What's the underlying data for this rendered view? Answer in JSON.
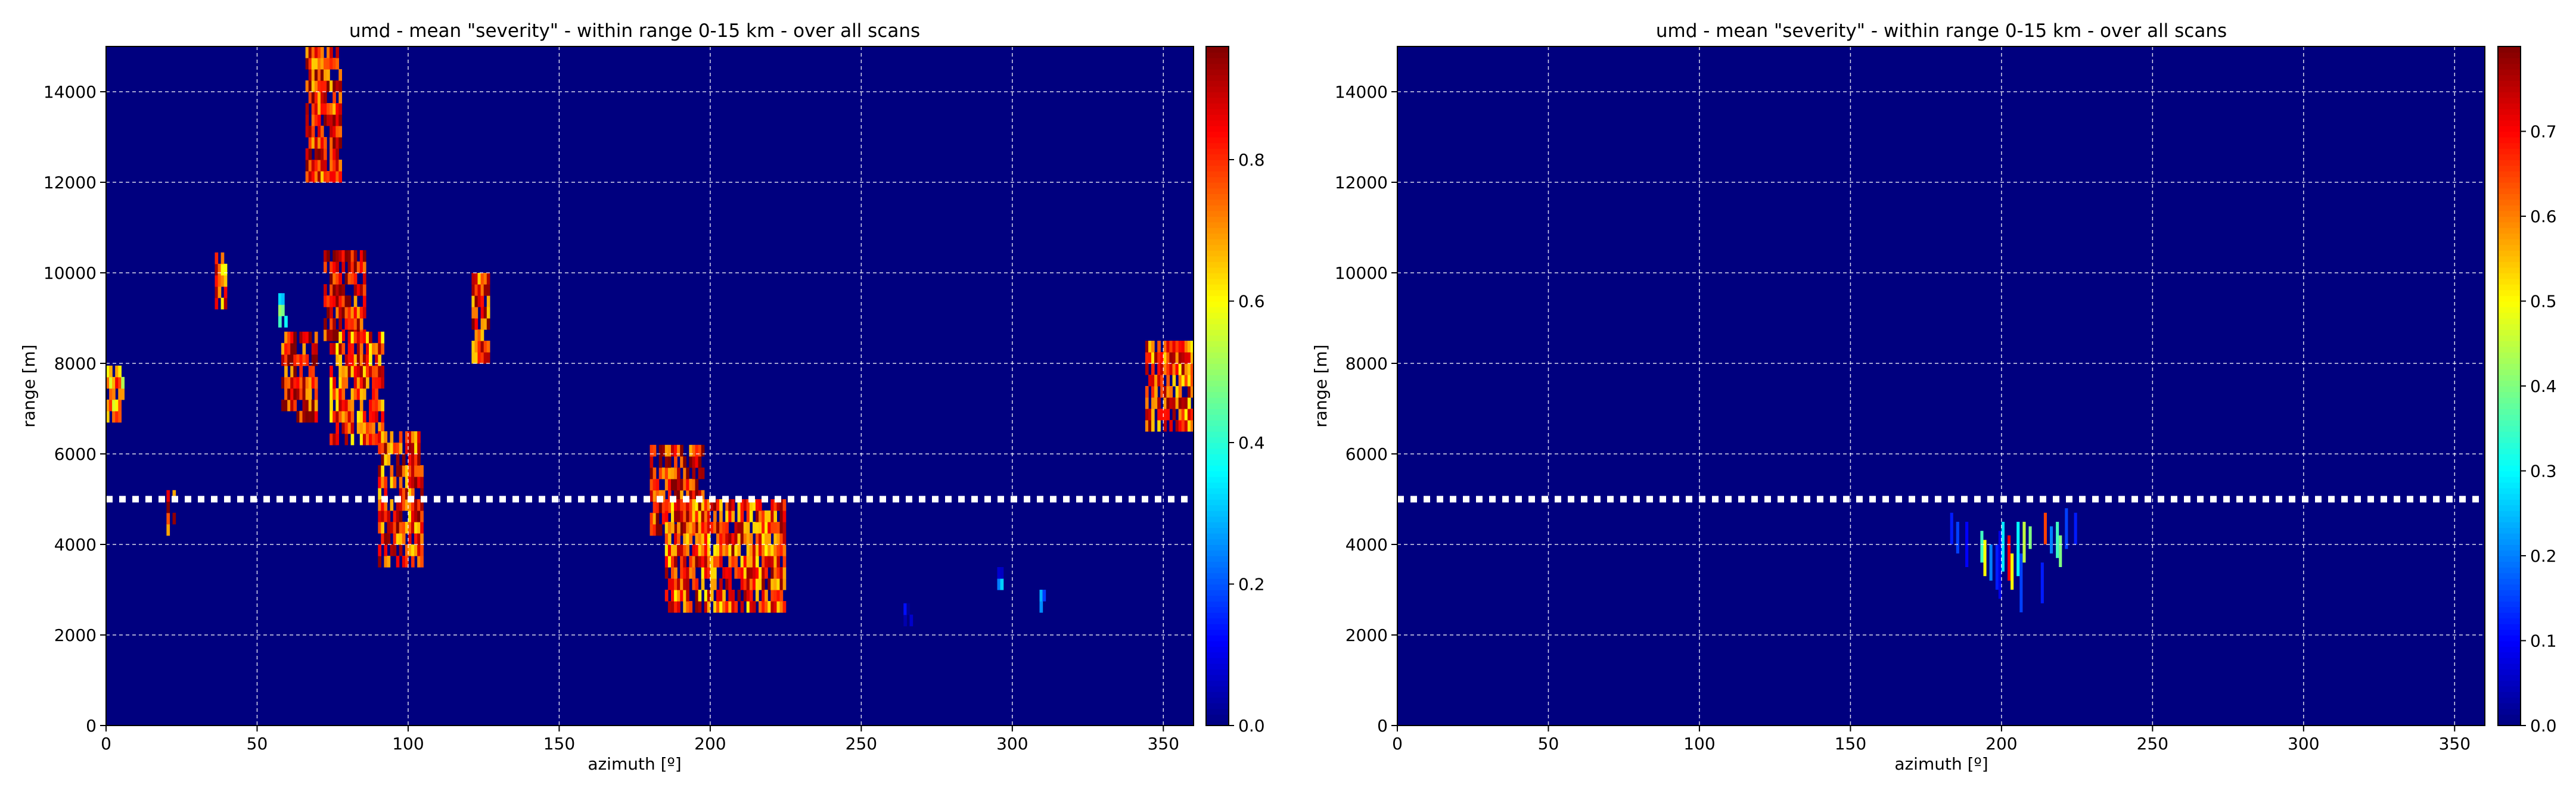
{
  "chart_data": [
    {
      "type": "heatmap",
      "title": "umd - mean \"severity\" - within range 0-15 km - over all scans",
      "xlabel": "azimuth [º]",
      "ylabel": "range [m]",
      "xlim": [
        0,
        360
      ],
      "ylim": [
        0,
        15000
      ],
      "x_ticks": [
        "0",
        "50",
        "100",
        "150",
        "200",
        "250",
        "300",
        "350"
      ],
      "y_ticks": [
        "0",
        "2000",
        "4000",
        "6000",
        "8000",
        "10000",
        "12000",
        "14000"
      ],
      "grid": true,
      "background_value": 0.0,
      "reference_line_range": 5000,
      "colorbar": {
        "min": 0.0,
        "max": 0.96,
        "ticks": [
          "0.0",
          "0.2",
          "0.4",
          "0.6",
          "0.8"
        ],
        "colormap": "jet-like"
      },
      "clusters": [
        {
          "az": [
            66,
            78
          ],
          "range": [
            12000,
            15000
          ],
          "mean": 0.82
        },
        {
          "az": [
            0,
            6
          ],
          "range": [
            6700,
            7800
          ],
          "mean": 0.7
        },
        {
          "az": [
            36,
            40
          ],
          "range": [
            9200,
            10300
          ],
          "mean": 0.75
        },
        {
          "az": [
            57,
            60
          ],
          "range": [
            8800,
            9500
          ],
          "mean": 0.45
        },
        {
          "az": [
            58,
            70
          ],
          "range": [
            6700,
            8500
          ],
          "mean": 0.85
        },
        {
          "az": [
            72,
            86
          ],
          "range": [
            8500,
            10300
          ],
          "mean": 0.85
        },
        {
          "az": [
            74,
            92
          ],
          "range": [
            6200,
            8700
          ],
          "mean": 0.78
        },
        {
          "az": [
            121,
            127
          ],
          "range": [
            8000,
            9800
          ],
          "mean": 0.8
        },
        {
          "az": [
            20,
            23
          ],
          "range": [
            4200,
            5000
          ],
          "mean": 0.85
        },
        {
          "az": [
            90,
            105
          ],
          "range": [
            3500,
            6500
          ],
          "mean": 0.8
        },
        {
          "az": [
            180,
            198
          ],
          "range": [
            4200,
            6000
          ],
          "mean": 0.85
        },
        {
          "az": [
            185,
            225
          ],
          "range": [
            2500,
            5000
          ],
          "mean": 0.78
        },
        {
          "az": [
            344,
            360
          ],
          "range": [
            6500,
            8500
          ],
          "mean": 0.78
        },
        {
          "az": [
            264,
            267
          ],
          "range": [
            2200,
            2700
          ],
          "mean": 0.12
        },
        {
          "az": [
            295,
            297
          ],
          "range": [
            3000,
            3500
          ],
          "mean": 0.2
        },
        {
          "az": [
            309,
            311
          ],
          "range": [
            2500,
            2900
          ],
          "mean": 0.12
        }
      ]
    },
    {
      "type": "heatmap",
      "title": "umd - mean \"severity\" - within range 0-15 km - over all scans",
      "xlabel": "azimuth [º]",
      "ylabel": "range [m]",
      "xlim": [
        0,
        360
      ],
      "ylim": [
        0,
        15000
      ],
      "x_ticks": [
        "0",
        "50",
        "100",
        "150",
        "200",
        "250",
        "300",
        "350"
      ],
      "y_ticks": [
        "0",
        "2000",
        "4000",
        "6000",
        "8000",
        "10000",
        "12000",
        "14000"
      ],
      "grid": true,
      "background_value": 0.0,
      "reference_line_range": 5000,
      "colorbar": {
        "min": 0.0,
        "max": 0.8,
        "ticks": [
          "0.0",
          "0.1",
          "0.2",
          "0.3",
          "0.4",
          "0.5",
          "0.6",
          "0.7"
        ],
        "colormap": "jet-like"
      },
      "bars": [
        {
          "az": 183,
          "range": [
            4000,
            4700
          ],
          "value": 0.12
        },
        {
          "az": 185,
          "range": [
            3800,
            4500
          ],
          "value": 0.15
        },
        {
          "az": 188,
          "range": [
            3500,
            4500
          ],
          "value": 0.1
        },
        {
          "az": 193,
          "range": [
            3600,
            4300
          ],
          "value": 0.35
        },
        {
          "az": 194,
          "range": [
            3300,
            4100
          ],
          "value": 0.5
        },
        {
          "az": 196,
          "range": [
            3200,
            4000
          ],
          "value": 0.2
        },
        {
          "az": 198,
          "range": [
            3000,
            4000
          ],
          "value": 0.12
        },
        {
          "az": 199,
          "range": [
            2800,
            4300
          ],
          "value": 0.08
        },
        {
          "az": 200,
          "range": [
            3400,
            4500
          ],
          "value": 0.28
        },
        {
          "az": 202,
          "range": [
            3200,
            4200
          ],
          "value": 0.7
        },
        {
          "az": 203,
          "range": [
            3000,
            3800
          ],
          "value": 0.5
        },
        {
          "az": 205,
          "range": [
            3300,
            4500
          ],
          "value": 0.3
        },
        {
          "az": 206,
          "range": [
            2500,
            3800
          ],
          "value": 0.15
        },
        {
          "az": 207,
          "range": [
            3600,
            4500
          ],
          "value": 0.45
        },
        {
          "az": 209,
          "range": [
            3900,
            4400
          ],
          "value": 0.4
        },
        {
          "az": 213,
          "range": [
            2700,
            3600
          ],
          "value": 0.12
        },
        {
          "az": 214,
          "range": [
            4000,
            4700
          ],
          "value": 0.65
        },
        {
          "az": 216,
          "range": [
            3800,
            4400
          ],
          "value": 0.2
        },
        {
          "az": 218,
          "range": [
            3700,
            4500
          ],
          "value": 0.35
        },
        {
          "az": 219,
          "range": [
            3500,
            4200
          ],
          "value": 0.4
        },
        {
          "az": 221,
          "range": [
            3900,
            4800
          ],
          "value": 0.15
        },
        {
          "az": 224,
          "range": [
            4000,
            4700
          ],
          "value": 0.12
        }
      ]
    }
  ]
}
